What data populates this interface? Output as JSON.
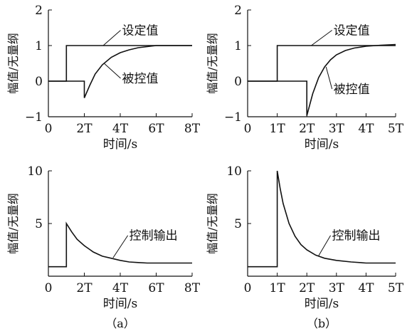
{
  "chart_data": [
    {
      "id": "a-top",
      "type": "line",
      "panel": "",
      "xlabel": "时间/s",
      "ylabel": "幅值/无量纲",
      "xlim": [
        0,
        8
      ],
      "ylim": [
        -1,
        2
      ],
      "xticks": [
        0,
        2,
        4,
        6,
        8
      ],
      "xtick_labels": [
        "0",
        "2T",
        "4T",
        "6T",
        "8T"
      ],
      "yticks": [
        -1,
        0,
        1,
        2
      ],
      "ytick_labels": [
        "−1",
        "0",
        "1",
        "2"
      ],
      "series": [
        {
          "name": "设定值",
          "x": [
            0,
            1,
            1,
            8
          ],
          "y": [
            0,
            0,
            1,
            1
          ]
        },
        {
          "name": "被控值",
          "x": [
            0,
            2,
            2,
            2.3,
            2.6,
            3,
            3.5,
            4,
            4.5,
            5,
            5.5,
            6,
            8
          ],
          "y": [
            0,
            0,
            -0.47,
            -0.12,
            0.2,
            0.46,
            0.67,
            0.8,
            0.88,
            0.94,
            0.97,
            1.0,
            1.0
          ]
        }
      ],
      "annotations": [
        {
          "text": "设定值",
          "x": 4.1,
          "y": 1.35,
          "tx": 3.05,
          "ty": 1.0
        },
        {
          "text": "被控值",
          "x": 4.1,
          "y": 0.0,
          "tx": 3.1,
          "ty": 0.5
        }
      ]
    },
    {
      "id": "b-top",
      "type": "line",
      "panel": "",
      "xlabel": "时间/s",
      "ylabel": "幅值/无量纲",
      "xlim": [
        0,
        5
      ],
      "ylim": [
        -1,
        2
      ],
      "xticks": [
        0,
        1,
        2,
        3,
        4,
        5
      ],
      "xtick_labels": [
        "0",
        "1T",
        "2T",
        "3T",
        "4T",
        "5T"
      ],
      "yticks": [
        -1,
        0,
        1,
        2
      ],
      "ytick_labels": [
        "−1",
        "0",
        "1",
        "2"
      ],
      "series": [
        {
          "name": "设定值",
          "x": [
            0,
            1,
            1,
            5
          ],
          "y": [
            0,
            0,
            1,
            1
          ]
        },
        {
          "name": "被控值",
          "x": [
            0,
            2,
            2,
            2.2,
            2.4,
            2.6,
            2.8,
            3,
            3.3,
            3.6,
            4,
            4.5,
            5
          ],
          "y": [
            0,
            0,
            -0.97,
            -0.35,
            0.1,
            0.4,
            0.6,
            0.74,
            0.86,
            0.93,
            0.98,
            1.01,
            1.03
          ]
        }
      ],
      "annotations": [
        {
          "text": "设定值",
          "x": 2.9,
          "y": 1.35,
          "tx": 2.15,
          "ty": 1.0
        },
        {
          "text": "被控值",
          "x": 2.9,
          "y": -0.3,
          "tx": 2.65,
          "ty": 0.4
        }
      ]
    },
    {
      "id": "a-bottom",
      "type": "line",
      "panel": "（a）",
      "xlabel": "时间/s",
      "ylabel": "幅值/无量纲",
      "xlim": [
        0,
        8
      ],
      "ylim": [
        0,
        10
      ],
      "xticks": [
        0,
        2,
        4,
        6,
        8
      ],
      "xtick_labels": [
        "0",
        "2T",
        "4T",
        "6T",
        "8T"
      ],
      "yticks": [
        5,
        10
      ],
      "ytick_labels": [
        "5",
        "10"
      ],
      "y_baseline": 0.9,
      "series": [
        {
          "name": "控制输出",
          "x": [
            0,
            1,
            1,
            1.3,
            1.6,
            2,
            2.5,
            3,
            3.5,
            4,
            4.5,
            5,
            5.5,
            8
          ],
          "y": [
            0.9,
            0.9,
            5.0,
            4.2,
            3.5,
            2.9,
            2.3,
            1.9,
            1.7,
            1.5,
            1.35,
            1.3,
            1.25,
            1.25
          ]
        }
      ],
      "annotations": [
        {
          "text": "控制输出",
          "x": 4.5,
          "y": 3.6,
          "tx": 3.6,
          "ty": 1.75
        }
      ]
    },
    {
      "id": "b-bottom",
      "type": "line",
      "panel": "（b）",
      "xlabel": "时间/s",
      "ylabel": "幅值/无量纲",
      "xlim": [
        0,
        5
      ],
      "ylim": [
        0,
        10
      ],
      "xticks": [
        0,
        1,
        2,
        3,
        4,
        5
      ],
      "xtick_labels": [
        "0",
        "1T",
        "2T",
        "3T",
        "4T",
        "5T"
      ],
      "yticks": [
        5,
        10
      ],
      "ytick_labels": [
        "5",
        "10"
      ],
      "y_baseline": 0.9,
      "series": [
        {
          "name": "控制输出",
          "x": [
            0,
            1,
            1,
            1.1,
            1.2,
            1.4,
            1.6,
            1.8,
            2,
            2.3,
            2.6,
            3,
            3.5,
            4,
            5
          ],
          "y": [
            0.9,
            0.9,
            10,
            8.3,
            6.9,
            5.0,
            3.8,
            3.0,
            2.5,
            2.0,
            1.7,
            1.5,
            1.35,
            1.25,
            1.25
          ]
        }
      ],
      "annotations": [
        {
          "text": "控制输出",
          "x": 2.85,
          "y": 3.6,
          "tx": 2.4,
          "ty": 1.95
        }
      ]
    }
  ]
}
